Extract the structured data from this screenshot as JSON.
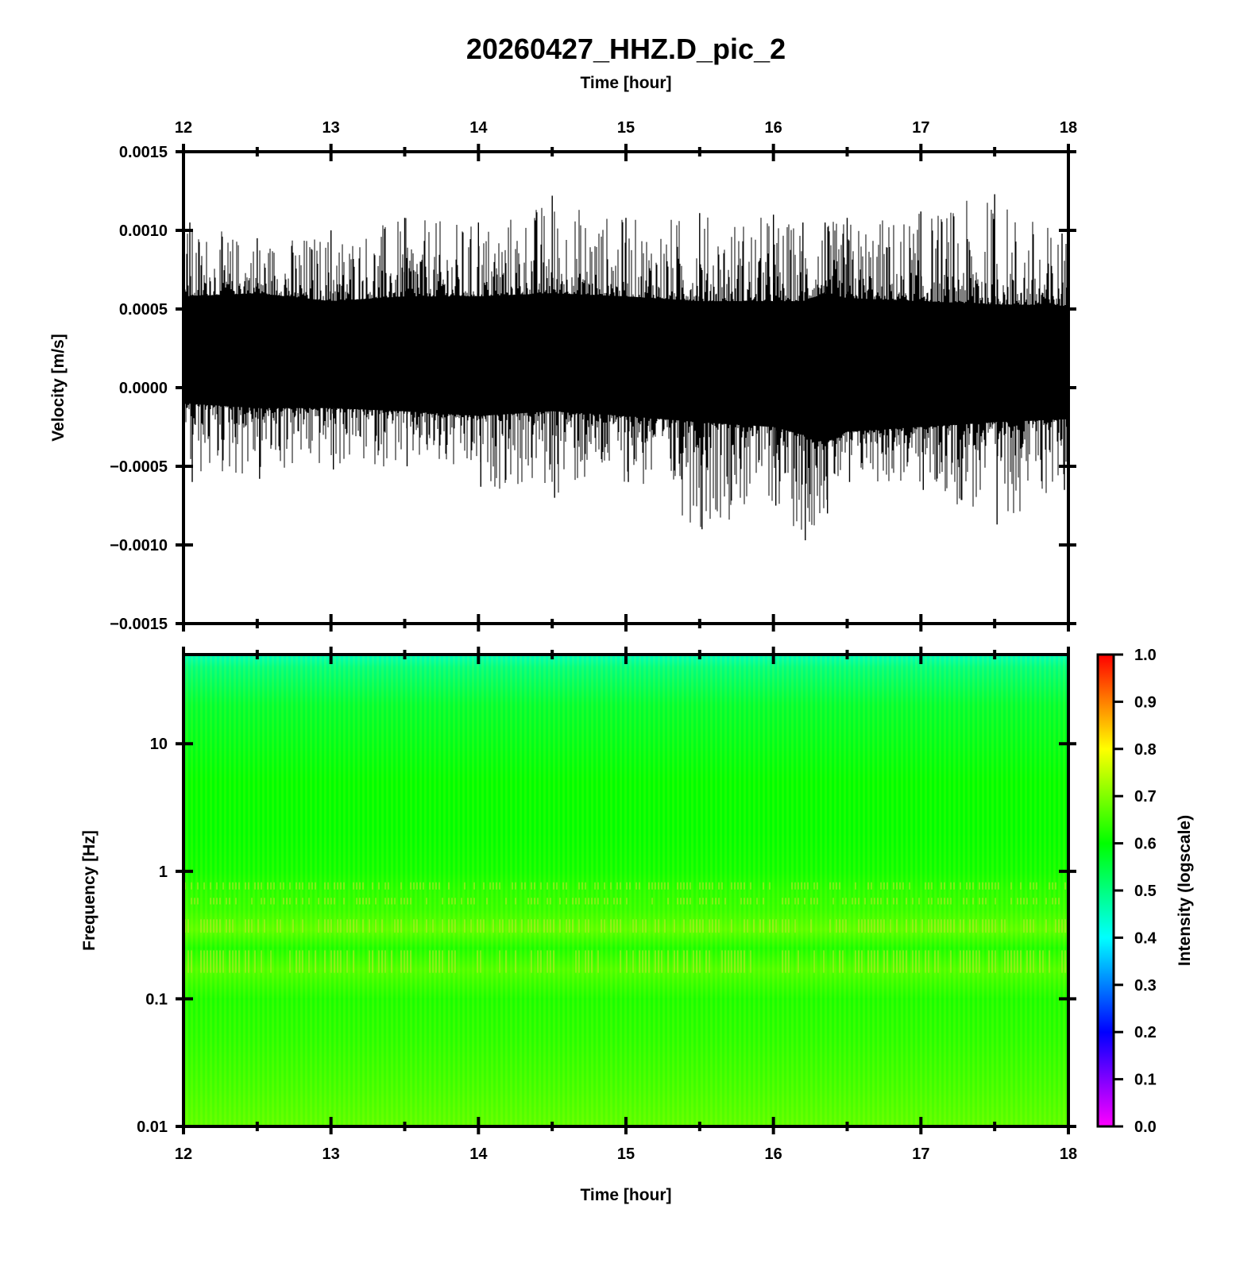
{
  "chart_data": [
    {
      "type": "line",
      "title": "20260427_HHZ.D_pic_2",
      "xlabel": "Time [hour]",
      "ylabel": "Velocity [m/s]",
      "xlim": [
        12,
        18
      ],
      "ylim": [
        -0.0015,
        0.0015
      ],
      "x_ticks": [
        "12",
        "13",
        "14",
        "15",
        "16",
        "17",
        "18"
      ],
      "y_ticks": [
        "0.0015",
        "0.0010",
        "0.0005",
        "0.0000",
        "−0.0005",
        "−0.0010",
        "−0.0015"
      ],
      "x_tick_values": [
        12,
        13,
        14,
        15,
        16,
        17,
        18
      ],
      "y_tick_values": [
        0.0015,
        0.001,
        0.0005,
        0,
        -0.0005,
        -0.001,
        -0.0015
      ],
      "grid": false,
      "series": [
        {
          "color": "#000000",
          "description_of_shape": "dense seismic noise trace centred near 0.0002 m/s",
          "x": [
            12.0,
            12.5,
            13.0,
            13.5,
            14.0,
            14.5,
            15.0,
            15.5,
            16.0,
            16.2,
            16.35,
            16.5,
            17.0,
            17.5,
            18.0
          ],
          "envelope_upper": [
            0.00058,
            0.0006,
            0.00055,
            0.00058,
            0.00058,
            0.0006,
            0.00058,
            0.00055,
            0.00055,
            0.00055,
            0.0006,
            0.00057,
            0.00055,
            0.00053,
            0.00052
          ],
          "envelope_lower": [
            -0.0001,
            -0.00013,
            -0.00013,
            -0.00015,
            -0.00018,
            -0.00015,
            -0.00018,
            -0.00022,
            -0.00025,
            -0.0003,
            -0.00035,
            -0.00028,
            -0.00025,
            -0.00022,
            -0.0002
          ],
          "spike_max": [
            0.00105,
            0.00095,
            0.001,
            0.00108,
            0.00105,
            0.00122,
            0.00108,
            0.00111,
            0.0011,
            0.00105,
            0.00105,
            0.00108,
            0.00112,
            0.00123,
            0.00098
          ],
          "spike_min": [
            -0.0006,
            -0.00058,
            -0.00052,
            -0.0005,
            -0.00063,
            -0.0007,
            -0.0006,
            -0.0009,
            -0.00075,
            -0.00097,
            -0.0008,
            -0.0006,
            -0.00065,
            -0.00087,
            -0.00065
          ]
        }
      ]
    },
    {
      "type": "heatmap",
      "xlabel": "Time [hour]",
      "ylabel": "Frequency [Hz]",
      "xlim": [
        12,
        18
      ],
      "ylim": [
        0.01,
        50
      ],
      "y_scale": "log",
      "x_ticks": [
        "12",
        "13",
        "14",
        "15",
        "16",
        "17",
        "18"
      ],
      "x_tick_values": [
        12,
        13,
        14,
        15,
        16,
        17,
        18
      ],
      "y_ticks": [
        "10",
        "1",
        "0.1",
        "0.01"
      ],
      "y_tick_values": [
        10,
        1,
        0.1,
        0.01
      ],
      "colorbar": {
        "label": "Intensity (logscale)",
        "range": [
          0,
          1
        ],
        "ticks": [
          "1.0",
          "0.9",
          "0.8",
          "0.7",
          "0.6",
          "0.5",
          "0.4",
          "0.3",
          "0.2",
          "0.1",
          "0.0"
        ],
        "tick_values": [
          1.0,
          0.9,
          0.8,
          0.7,
          0.6,
          0.5,
          0.4,
          0.3,
          0.2,
          0.1,
          0.0
        ],
        "colormap": [
          "#ff00ff",
          "#8000ff",
          "#0000ff",
          "#0080ff",
          "#00ffff",
          "#00ff80",
          "#00ff00",
          "#80ff00",
          "#ffff00",
          "#ff8000",
          "#ff0000"
        ]
      },
      "intensity_profile": {
        "frequency_hz": [
          50,
          40,
          20,
          10,
          5,
          2,
          1,
          0.7,
          0.5,
          0.35,
          0.25,
          0.17,
          0.1,
          0.05,
          0.02,
          0.01
        ],
        "intensity": [
          0.45,
          0.5,
          0.56,
          0.58,
          0.6,
          0.6,
          0.61,
          0.63,
          0.64,
          0.67,
          0.62,
          0.66,
          0.62,
          0.63,
          0.65,
          0.67
        ]
      }
    }
  ]
}
